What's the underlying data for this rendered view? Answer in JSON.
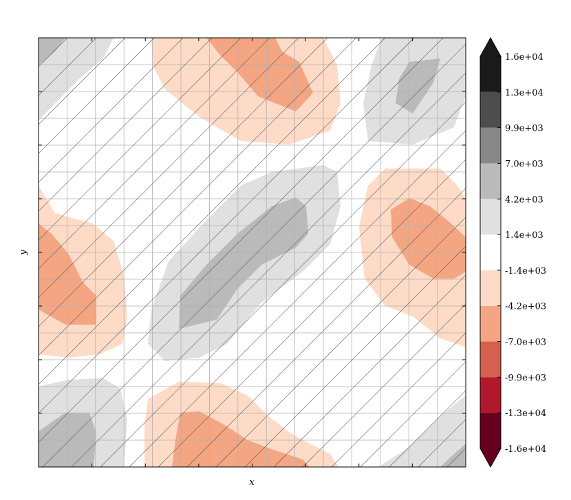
{
  "chart_data": {
    "type": "heatmap",
    "title": "",
    "xlabel": "x",
    "ylabel": "y",
    "x_tick_labels": [],
    "y_tick_labels": [],
    "grid": true,
    "hatching": "diagonal lines over the whole field",
    "colorbar": {
      "levels": [
        -16000,
        -13000,
        -9900,
        -7000,
        -4200,
        -1400,
        1400,
        4200,
        7000,
        9900,
        13000,
        16000
      ],
      "tick_labels": [
        "1.6e+04",
        "1.3e+04",
        "9.9e+03",
        "7.0e+03",
        "4.2e+03",
        "1.4e+03",
        "-1.4e+03",
        "-4.2e+03",
        "-7.0e+03",
        "-9.9e+03",
        "-1.3e+04",
        "-1.6e+04"
      ],
      "colors": [
        "#67001f",
        "#b2182b",
        "#d6604d",
        "#f4a582",
        "#fddbc7",
        "#ffffff",
        "#e0e0e0",
        "#bababa",
        "#878787",
        "#4d4d4d",
        "#1a1a1a"
      ],
      "extend": "both",
      "under_color": "#67001f",
      "over_color": "#1a1a1a",
      "placement": "right"
    },
    "regions": [
      {
        "level": 4200,
        "note": "gray blob top-left corner"
      },
      {
        "level": -4200,
        "note": "orange band top-center"
      },
      {
        "level": 9900,
        "note": "darker gray spot top-right"
      },
      {
        "level": 7000,
        "note": "gray ridge through center"
      },
      {
        "level": -7000,
        "note": "orange lobe right-middle"
      },
      {
        "level": -7000,
        "note": "orange lobe left-middle"
      },
      {
        "level": 7000,
        "note": "gray blob bottom-left"
      },
      {
        "level": -7000,
        "note": "orange blob bottom-center"
      },
      {
        "level": 7000,
        "note": "gray blob bottom-right corner"
      }
    ]
  }
}
